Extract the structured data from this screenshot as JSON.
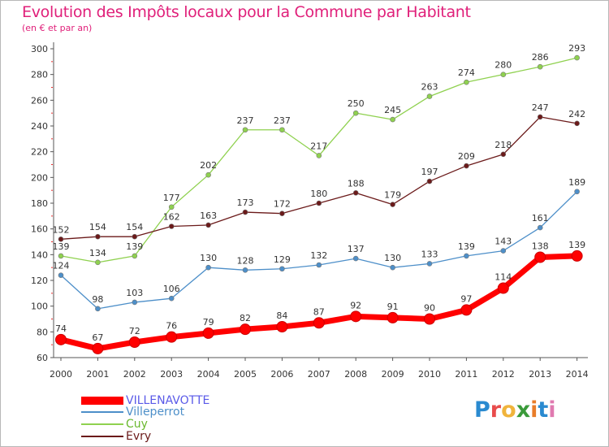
{
  "header": {
    "title": "Evolution des Impôts locaux pour la Commune par Habitant",
    "subtitle": "(en € et par an)"
  },
  "brand": {
    "text": "Proxiti"
  },
  "chart_data": {
    "type": "line",
    "title": "Evolution des Impôts locaux pour la Commune par Habitant",
    "subtitle": "(en € et par an)",
    "x": [
      "2000",
      "2001",
      "2002",
      "2003",
      "2004",
      "2005",
      "2006",
      "2007",
      "2008",
      "2009",
      "2010",
      "2011",
      "2012",
      "2013",
      "2014"
    ],
    "ylim": [
      60,
      300
    ],
    "yticks": [
      60,
      80,
      100,
      120,
      140,
      160,
      180,
      200,
      220,
      240,
      260,
      280,
      300
    ],
    "grid": false,
    "legend_position": "bottom-left",
    "series": [
      {
        "name": "VILLENAVOTTE",
        "color": "#ff0000",
        "values": [
          74,
          67,
          72,
          76,
          79,
          82,
          84,
          87,
          92,
          91,
          90,
          97,
          114,
          138,
          139
        ]
      },
      {
        "name": "Villeperrot",
        "color": "#4d8fc9",
        "values": [
          124,
          98,
          103,
          106,
          130,
          128,
          129,
          132,
          137,
          130,
          133,
          139,
          143,
          161,
          189
        ]
      },
      {
        "name": "Cuy",
        "color": "#8fd14f",
        "values": [
          139,
          134,
          139,
          177,
          202,
          237,
          237,
          217,
          250,
          245,
          263,
          274,
          280,
          286,
          293
        ]
      },
      {
        "name": "Evry",
        "color": "#6b1a1a",
        "values": [
          152,
          154,
          154,
          162,
          163,
          173,
          172,
          180,
          188,
          179,
          197,
          209,
          218,
          247,
          242
        ]
      }
    ]
  }
}
